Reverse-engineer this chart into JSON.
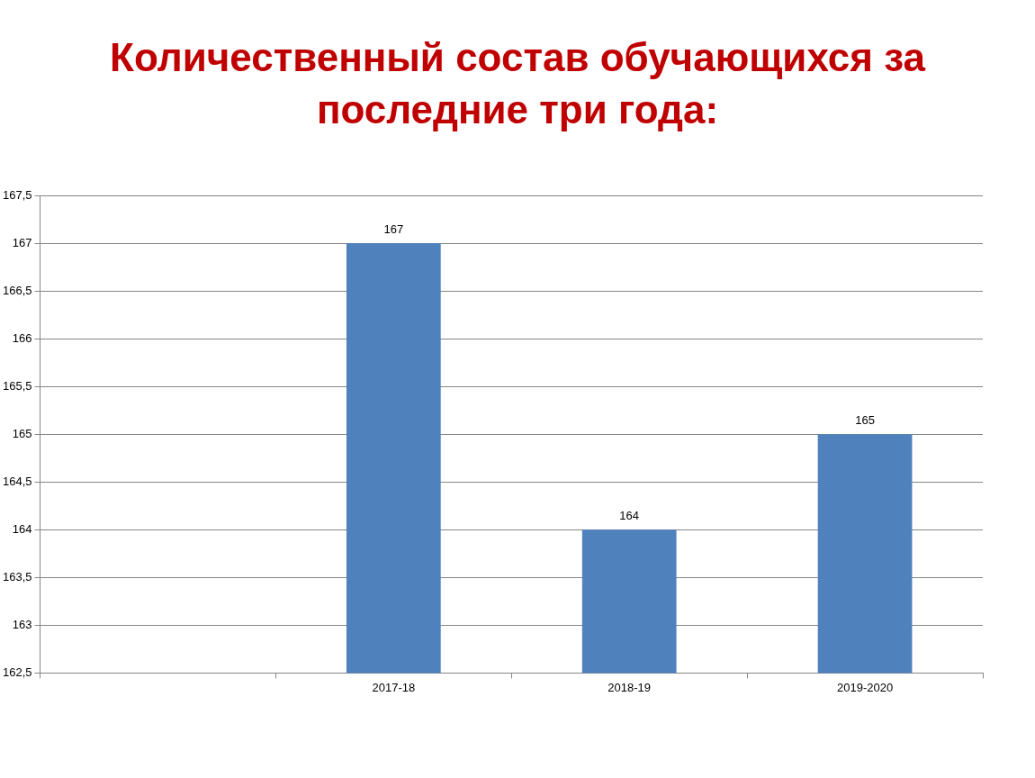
{
  "chart_data": {
    "type": "bar",
    "title": "Количественный состав обучающихся за последние три года:",
    "categories": [
      null,
      "2017-18",
      "2018-19",
      "2019-2020"
    ],
    "values": [
      null,
      167,
      164,
      165
    ],
    "color": "#4f81bd",
    "ylim": [
      162.5,
      167.5
    ],
    "yticks": [
      {
        "value": 162.5,
        "label": "162,5"
      },
      163,
      {
        "value": 163.5,
        "label": "163,5"
      },
      164,
      {
        "value": 164.5,
        "label": "164,5"
      },
      165,
      {
        "value": 165.5,
        "label": "165,5"
      },
      166,
      {
        "value": 166.5,
        "label": "166,5"
      },
      167,
      {
        "value": 167.5,
        "label": "167,5"
      }
    ],
    "grid": "y",
    "data_labels": true
  }
}
